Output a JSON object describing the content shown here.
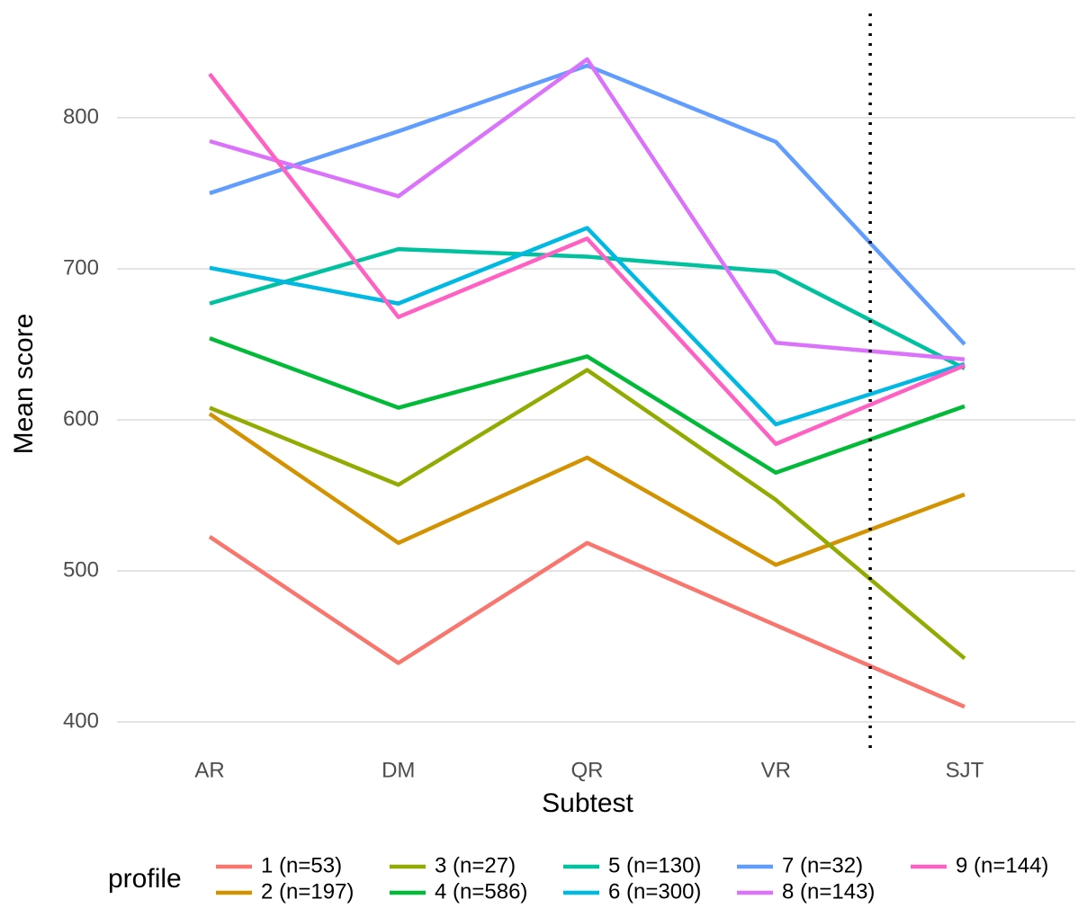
{
  "chart_data": {
    "type": "line",
    "x_label": "Subtest",
    "y_label": "Mean score",
    "legend_title": "profile",
    "categories": [
      "AR",
      "DM",
      "QR",
      "VR",
      "SJT"
    ],
    "ylim": [
      378,
      869
    ],
    "yticks": [
      400,
      500,
      600,
      700,
      800
    ],
    "grid": true,
    "legend_position": "bottom",
    "series": [
      {
        "name": "1 (n=53)",
        "color": "#F8766D",
        "values": [
          522.6,
          439,
          518.5,
          464,
          410
        ]
      },
      {
        "name": "2 (n=197)",
        "color": "#D39200",
        "values": [
          604,
          518.5,
          575,
          504,
          550.6
        ]
      },
      {
        "name": "3 (n=27)",
        "color": "#93AA00",
        "values": [
          608,
          557,
          633,
          547,
          442
        ]
      },
      {
        "name": "4 (n=586)",
        "color": "#00BA38",
        "values": [
          654,
          608,
          642,
          565,
          609
        ]
      },
      {
        "name": "5 (n=130)",
        "color": "#00C19F",
        "values": [
          677,
          713,
          708,
          698,
          634
        ]
      },
      {
        "name": "6 (n=300)",
        "color": "#00B9E3",
        "values": [
          700.6,
          677,
          727,
          597,
          637
        ]
      },
      {
        "name": "7 (n=32)",
        "color": "#619CFF",
        "values": [
          750,
          791,
          834.5,
          784,
          650
        ]
      },
      {
        "name": "8 (n=143)",
        "color": "#DB72FB",
        "values": [
          784.5,
          748,
          838.7,
          651,
          640
        ]
      },
      {
        "name": "9 (n=144)",
        "color": "#FF61C3",
        "values": [
          829,
          668,
          720,
          584,
          636
        ]
      }
    ]
  }
}
